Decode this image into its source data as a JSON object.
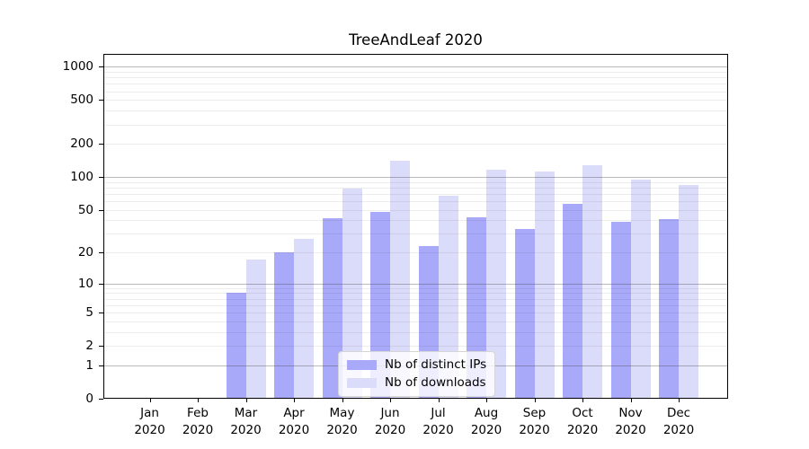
{
  "chart_data": {
    "type": "bar",
    "title": "TreeAndLeaf 2020",
    "categories": [
      "Jan",
      "Feb",
      "Mar",
      "Apr",
      "May",
      "Jun",
      "Jul",
      "Aug",
      "Sep",
      "Oct",
      "Nov",
      "Dec"
    ],
    "year": "2020",
    "series": [
      {
        "name": "Nb of distinct IPs",
        "color": "#a9a9fa",
        "values": [
          0,
          0,
          8,
          20,
          42,
          48,
          23,
          43,
          33,
          57,
          39,
          41
        ]
      },
      {
        "name": "Nb of downloads",
        "color": "#dbdbfa",
        "values": [
          0,
          0,
          17,
          27,
          78,
          140,
          67,
          117,
          112,
          127,
          95,
          85
        ]
      }
    ],
    "y_axis": {
      "scale": "log1p",
      "tick_values": [
        0,
        1,
        2,
        5,
        10,
        20,
        50,
        100,
        200,
        500,
        1000
      ],
      "tick_labels": [
        "0",
        "1",
        "2",
        "5",
        "10",
        "20",
        "50",
        "100",
        "200",
        "500",
        "1000"
      ],
      "major_gridlines": [
        1,
        10,
        100,
        1000
      ],
      "minor_gridlines": [
        2,
        3,
        4,
        5,
        6,
        7,
        8,
        9,
        20,
        30,
        40,
        50,
        60,
        70,
        80,
        90,
        200,
        300,
        400,
        500,
        600,
        700,
        800,
        900
      ],
      "ylim": [
        0,
        1320
      ]
    },
    "legend": {
      "position": "lower center",
      "entries": [
        "Nb of distinct IPs",
        "Nb of downloads"
      ]
    },
    "grid": true
  }
}
